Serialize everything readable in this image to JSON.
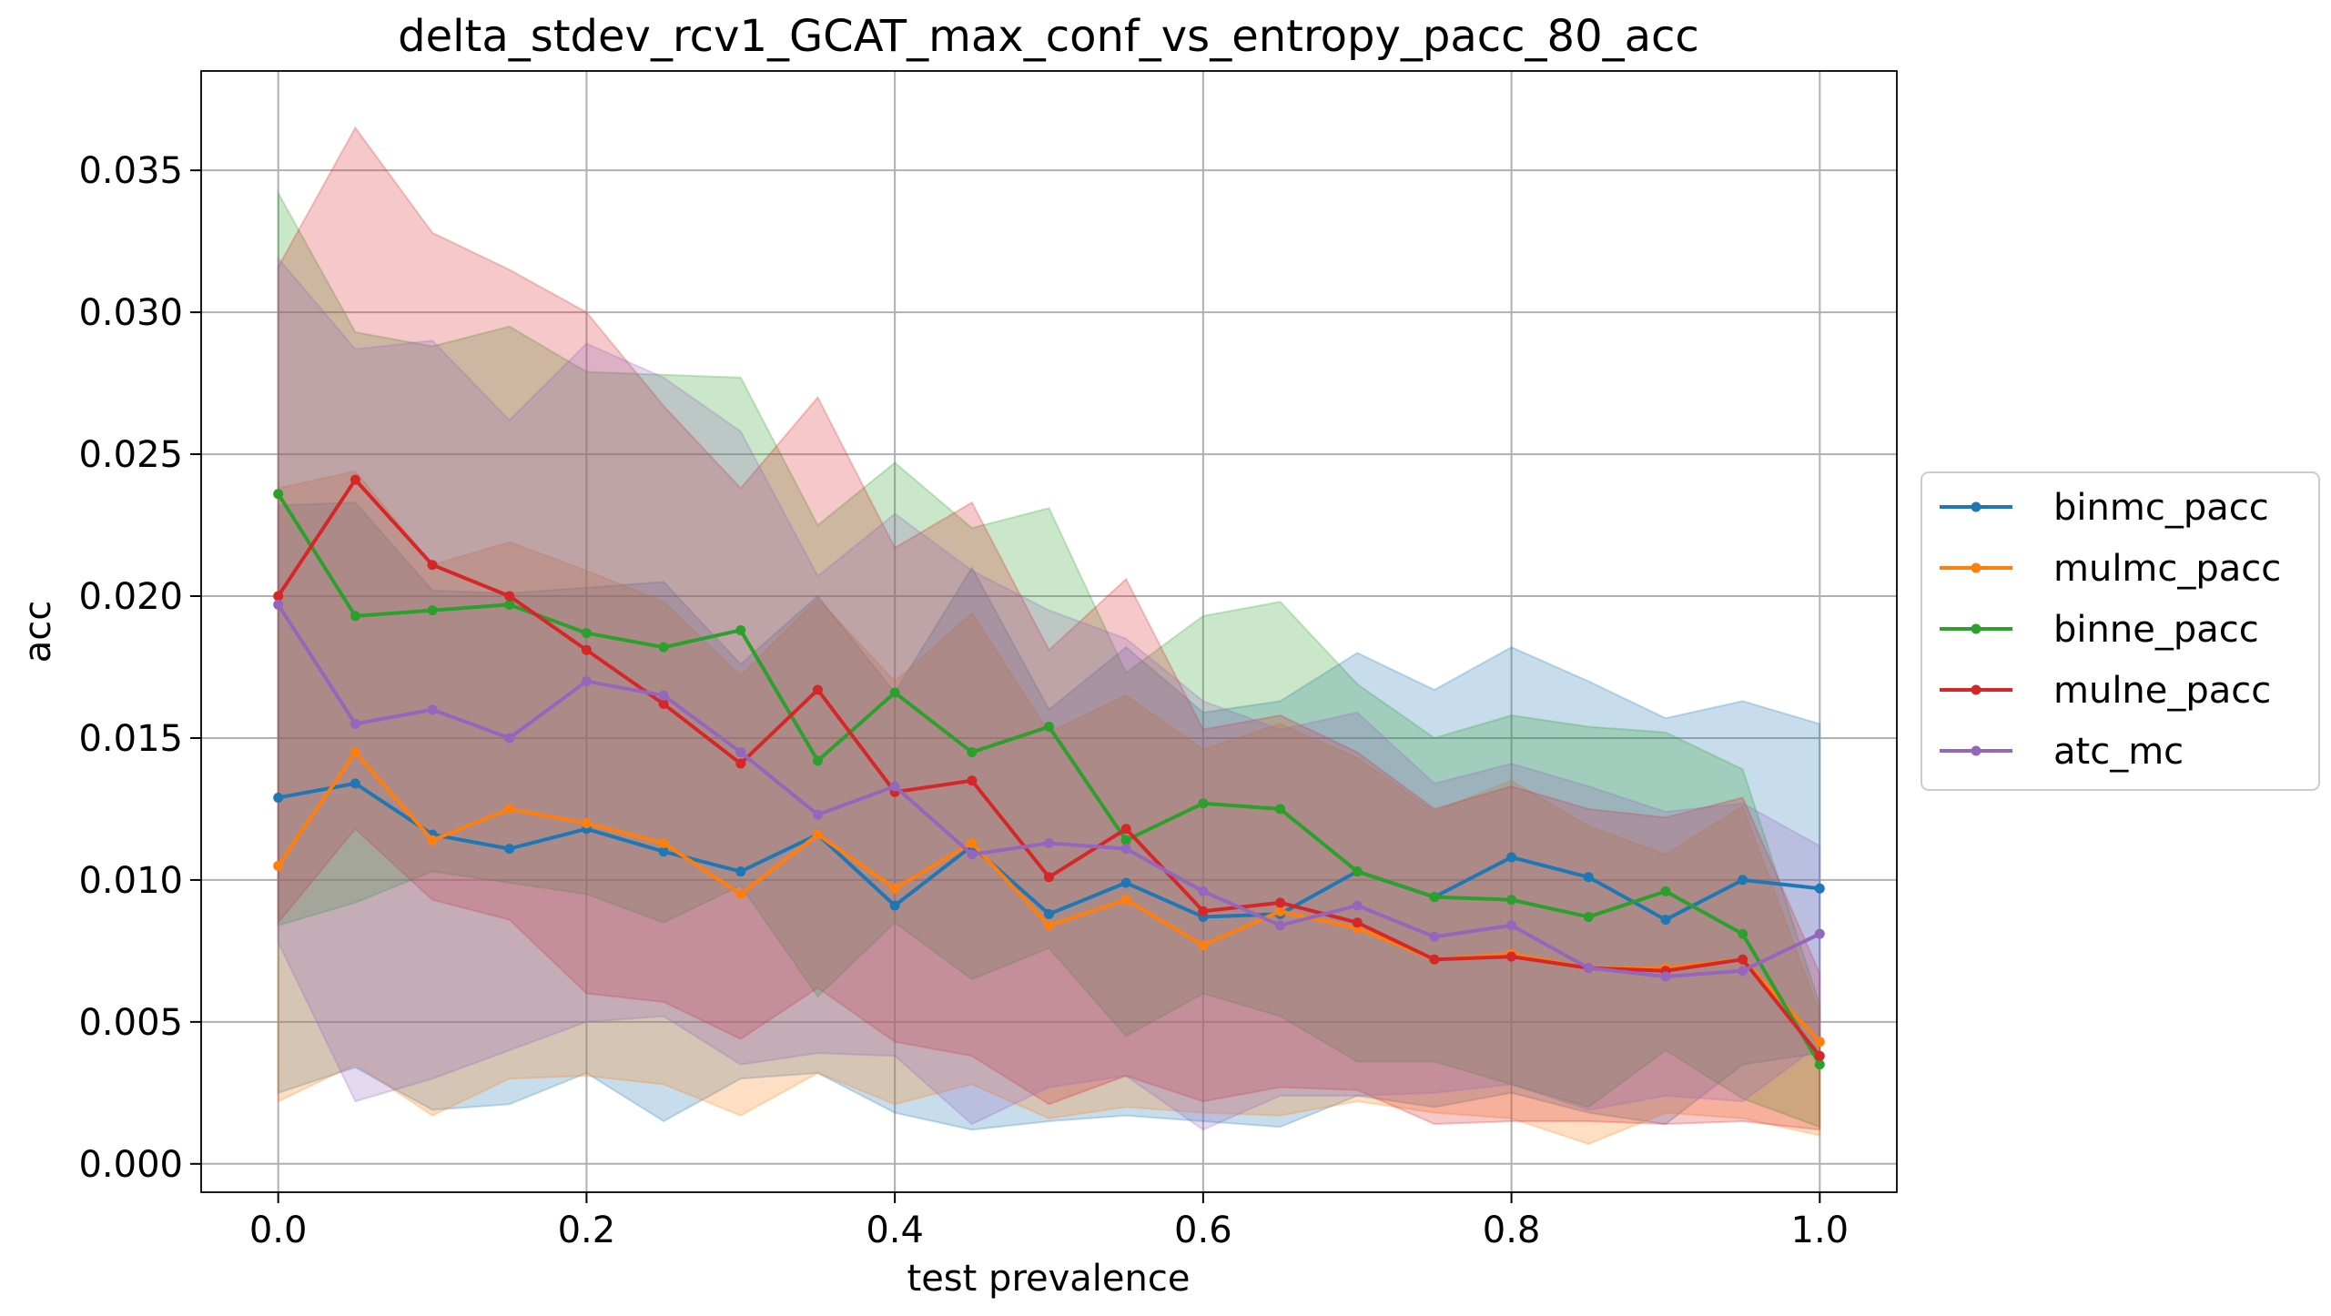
{
  "chart_data": {
    "type": "line",
    "title": "delta_stdev_rcv1_GCAT_max_conf_vs_entropy_pacc_80_acc",
    "xlabel": "test prevalence",
    "ylabel": "acc",
    "xlim": [
      -0.05,
      1.05
    ],
    "ylim": [
      -0.001,
      0.0385
    ],
    "xticks": [
      "0.0",
      "0.2",
      "0.4",
      "0.6",
      "0.8",
      "1.0"
    ],
    "yticks": [
      "0.000",
      "0.005",
      "0.010",
      "0.015",
      "0.020",
      "0.025",
      "0.030",
      "0.035"
    ],
    "grid": true,
    "legend_position": "right-center",
    "x": [
      0.0,
      0.05,
      0.1,
      0.15,
      0.2,
      0.25,
      0.3,
      0.35,
      0.4,
      0.45,
      0.5,
      0.55,
      0.6,
      0.65,
      0.7,
      0.75,
      0.8,
      0.85,
      0.9,
      0.95,
      1.0
    ],
    "series": [
      {
        "name": "binmc_pacc",
        "color": "#1f77b4",
        "values": [
          0.0129,
          0.0134,
          0.0116,
          0.0111,
          0.0118,
          0.011,
          0.0103,
          0.0116,
          0.0091,
          0.0112,
          0.0088,
          0.0099,
          0.0087,
          0.0088,
          0.0103,
          0.0094,
          0.0108,
          0.0101,
          0.0086,
          0.01,
          0.0097
        ],
        "upper": [
          0.0232,
          0.0233,
          0.0202,
          0.0201,
          0.0203,
          0.0205,
          0.0176,
          0.02,
          0.0166,
          0.021,
          0.016,
          0.0182,
          0.0159,
          0.0163,
          0.018,
          0.0167,
          0.0182,
          0.017,
          0.0157,
          0.0163,
          0.0155
        ],
        "lower": [
          0.0025,
          0.0034,
          0.0019,
          0.0021,
          0.0032,
          0.0015,
          0.003,
          0.0032,
          0.0018,
          0.0012,
          0.0015,
          0.0017,
          0.0015,
          0.0013,
          0.0024,
          0.002,
          0.0025,
          0.0018,
          0.0014,
          0.0035,
          0.0039
        ]
      },
      {
        "name": "mulmc_pacc",
        "color": "#ff7f0e",
        "values": [
          0.0105,
          0.0145,
          0.0114,
          0.0125,
          0.012,
          0.0113,
          0.0095,
          0.0116,
          0.0097,
          0.0113,
          0.0084,
          0.0093,
          0.0077,
          0.0089,
          0.0083,
          0.0072,
          0.0074,
          0.0069,
          0.0069,
          0.0072,
          0.0043
        ],
        "upper": [
          0.0238,
          0.0244,
          0.0211,
          0.0219,
          0.0209,
          0.0198,
          0.0172,
          0.0199,
          0.017,
          0.0194,
          0.0152,
          0.0165,
          0.0146,
          0.0155,
          0.0143,
          0.0124,
          0.0135,
          0.0119,
          0.0109,
          0.0126,
          0.0053
        ],
        "lower": [
          0.0022,
          0.0035,
          0.0017,
          0.003,
          0.0031,
          0.0028,
          0.0017,
          0.0032,
          0.0021,
          0.0028,
          0.0016,
          0.002,
          0.0018,
          0.0017,
          0.0022,
          0.0018,
          0.0016,
          0.0007,
          0.0018,
          0.0016,
          0.001
        ]
      },
      {
        "name": "binne_pacc",
        "color": "#2ca02c",
        "values": [
          0.0236,
          0.0193,
          0.0195,
          0.0197,
          0.0187,
          0.0182,
          0.0188,
          0.0142,
          0.0166,
          0.0145,
          0.0154,
          0.0114,
          0.0127,
          0.0125,
          0.0103,
          0.0094,
          0.0093,
          0.0087,
          0.0096,
          0.0081,
          0.0035
        ],
        "upper": [
          0.0342,
          0.0293,
          0.0288,
          0.0295,
          0.0279,
          0.0278,
          0.0277,
          0.0225,
          0.0247,
          0.0224,
          0.0231,
          0.0173,
          0.0193,
          0.0198,
          0.0169,
          0.015,
          0.0158,
          0.0154,
          0.0152,
          0.0139,
          0.0056
        ],
        "lower": [
          0.0084,
          0.0092,
          0.0103,
          0.0099,
          0.0095,
          0.0085,
          0.0098,
          0.0059,
          0.0085,
          0.0065,
          0.0076,
          0.0045,
          0.006,
          0.0052,
          0.0036,
          0.0036,
          0.0028,
          0.002,
          0.004,
          0.0023,
          0.0013
        ]
      },
      {
        "name": "mulne_pacc",
        "color": "#d62728",
        "values": [
          0.02,
          0.0241,
          0.0211,
          0.02,
          0.0181,
          0.0162,
          0.0141,
          0.0167,
          0.0131,
          0.0135,
          0.0101,
          0.0118,
          0.0089,
          0.0092,
          0.0085,
          0.0072,
          0.0073,
          0.0069,
          0.0068,
          0.0072,
          0.0038
        ],
        "upper": [
          0.0316,
          0.0365,
          0.0328,
          0.0315,
          0.03,
          0.0267,
          0.0238,
          0.027,
          0.0217,
          0.0233,
          0.0181,
          0.0206,
          0.0153,
          0.0158,
          0.0145,
          0.0125,
          0.0133,
          0.0125,
          0.0122,
          0.0129,
          0.0067
        ],
        "lower": [
          0.0085,
          0.0118,
          0.0093,
          0.0086,
          0.006,
          0.0057,
          0.0044,
          0.0062,
          0.0043,
          0.0038,
          0.0021,
          0.0031,
          0.0022,
          0.0027,
          0.0026,
          0.0014,
          0.0015,
          0.0015,
          0.0014,
          0.0015,
          0.0012
        ]
      },
      {
        "name": "atc_mc",
        "color": "#9467bd",
        "values": [
          0.0197,
          0.0155,
          0.016,
          0.015,
          0.017,
          0.0165,
          0.0145,
          0.0123,
          0.0133,
          0.0109,
          0.0113,
          0.0111,
          0.0096,
          0.0084,
          0.0091,
          0.008,
          0.0084,
          0.0069,
          0.0066,
          0.0068,
          0.0081
        ],
        "upper": [
          0.0319,
          0.0287,
          0.029,
          0.0262,
          0.0289,
          0.0277,
          0.0258,
          0.0207,
          0.0229,
          0.0209,
          0.0195,
          0.0185,
          0.0163,
          0.0153,
          0.0159,
          0.0134,
          0.0141,
          0.0133,
          0.0124,
          0.0127,
          0.0112
        ],
        "lower": [
          0.0078,
          0.0022,
          0.003,
          0.004,
          0.005,
          0.0052,
          0.0035,
          0.0039,
          0.0038,
          0.0014,
          0.0027,
          0.0031,
          0.0012,
          0.0024,
          0.0024,
          0.0025,
          0.0028,
          0.0019,
          0.0024,
          0.0022,
          0.0042
        ]
      }
    ]
  }
}
